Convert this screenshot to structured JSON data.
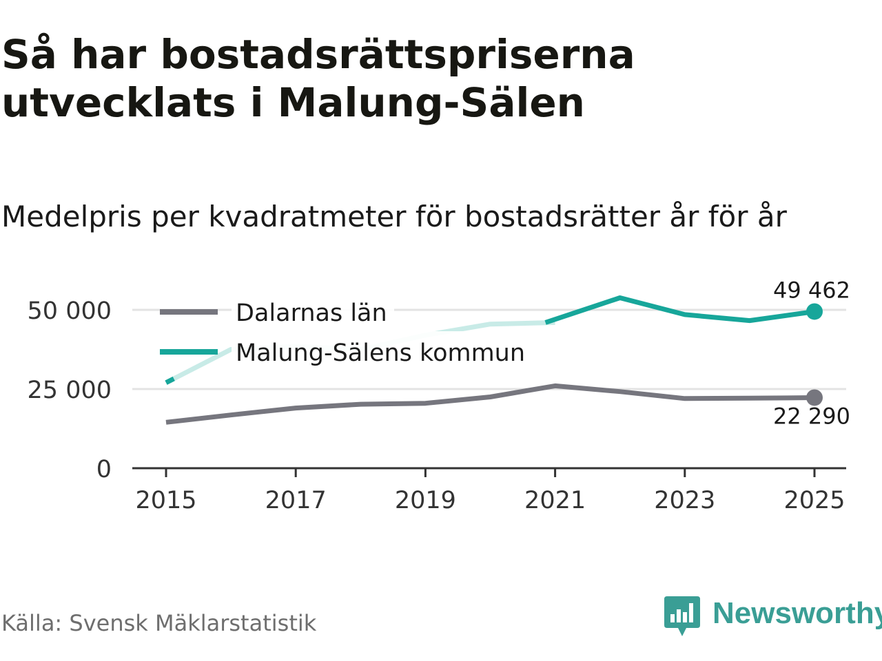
{
  "title": "Så har bostadsrättspriserna utvecklats i Malung-Sälen",
  "subtitle": "Medelpris per kvadratmeter för bostadsrätter år för år",
  "source": "Källa: Svensk Mäklarstatistik",
  "brand": {
    "name": "Newsworthy",
    "icon": "newsworthy-logo-icon"
  },
  "colors": {
    "dalarna": "#76767e",
    "malung": "#17a69a",
    "malung_faded": "#c8ebe7",
    "grid": "#e3e3e3",
    "axis": "#333333"
  },
  "chart_data": {
    "type": "line",
    "title": "Medelpris per kvadratmeter för bostadsrätter år för år",
    "xlabel": "",
    "ylabel": "",
    "xlim": [
      2015,
      2025
    ],
    "ylim": [
      0,
      50000
    ],
    "x_ticks": [
      2015,
      2017,
      2019,
      2021,
      2023,
      2025
    ],
    "x_tick_labels": [
      "2015",
      "2017",
      "2019",
      "2021",
      "2023",
      "2025"
    ],
    "y_ticks": [
      0,
      25000,
      50000
    ],
    "y_tick_labels": [
      "0",
      "25 000",
      "50 000"
    ],
    "grid": true,
    "legend_position": "top-left",
    "x": [
      2015,
      2016,
      2017,
      2018,
      2019,
      2020,
      2021,
      2022,
      2023,
      2024,
      2025
    ],
    "series": [
      {
        "key": "dalarna",
        "name": "Dalarnas län",
        "values": [
          14500,
          16800,
          19000,
          20200,
          20500,
          22500,
          26000,
          24200,
          22000,
          22100,
          22290
        ],
        "end_label": "22 290"
      },
      {
        "key": "malung",
        "name": "Malung-Sälens kommun",
        "values": [
          27000,
          37500,
          38500,
          37500,
          42000,
          45500,
          46000,
          53800,
          48500,
          46600,
          49462
        ],
        "faded_until": 2021,
        "end_label": "49 462"
      }
    ]
  }
}
